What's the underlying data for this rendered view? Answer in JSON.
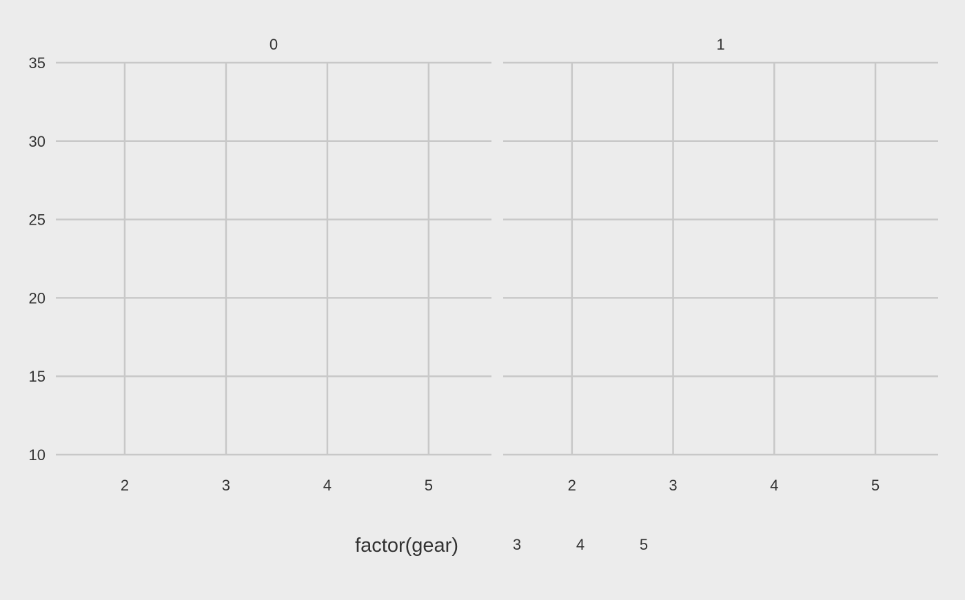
{
  "chart_data": {
    "type": "scatter",
    "facet_variable_levels": [
      "0",
      "1"
    ],
    "panels": [
      {
        "strip_label": "0",
        "points": []
      },
      {
        "strip_label": "1",
        "points": []
      }
    ],
    "x_ticks": [
      2,
      3,
      4,
      5
    ],
    "y_ticks": [
      10,
      15,
      20,
      25,
      30,
      35
    ],
    "xlim": [
      1.32,
      5.62
    ],
    "ylim": [
      10,
      35
    ],
    "xlabel": "",
    "ylabel": "",
    "grid": true,
    "legend": {
      "title": "factor(gear)",
      "position": "bottom",
      "items": [
        "3",
        "4",
        "5"
      ]
    },
    "colors": {
      "background": "#ececec",
      "grid": "#c8c8c8",
      "text": "#333333"
    }
  }
}
